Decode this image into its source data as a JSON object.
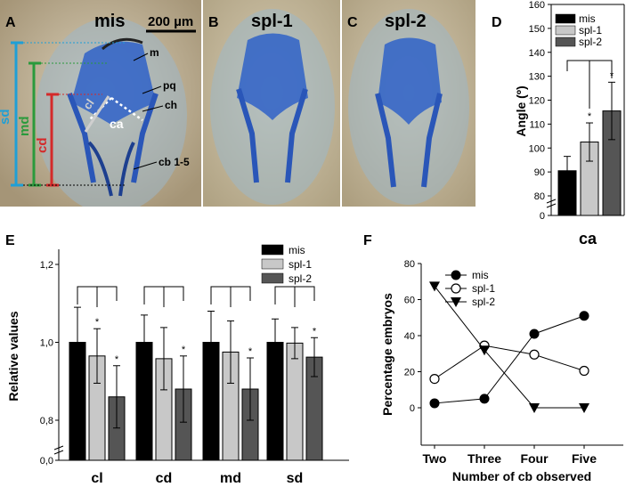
{
  "colors": {
    "mis": "#000000",
    "spl1": "#c8c8c8",
    "spl2": "#555555",
    "cl": "#d42a2a",
    "cd": "#d42a2a",
    "md": "#2a9a3c",
    "sd": "#1f9fd6",
    "cartilage": "#2f62c8"
  },
  "photos": {
    "A": {
      "letter": "A",
      "title": "mis",
      "scale": "200 µm",
      "labels": [
        "m",
        "pq",
        "ch",
        "ca",
        "cb 1-5"
      ],
      "measures": [
        "cl",
        "cd",
        "md",
        "sd"
      ]
    },
    "B": {
      "letter": "B",
      "title": "spl-1"
    },
    "C": {
      "letter": "C",
      "title": "spl-2"
    }
  },
  "chart_data": [
    {
      "panel": "D",
      "type": "bar",
      "ylabel": "Angle (º)",
      "categories": [
        "ca"
      ],
      "yticks": [
        0,
        80,
        90,
        100,
        110,
        120,
        130,
        140,
        150,
        160
      ],
      "series": [
        {
          "name": "mis",
          "values": [
            90.5
          ],
          "err": [
            6
          ]
        },
        {
          "name": "spl-1",
          "values": [
            102.5
          ],
          "err": [
            8
          ]
        },
        {
          "name": "spl-2",
          "values": [
            115.5
          ],
          "err": [
            12
          ]
        }
      ],
      "sig": [
        "",
        "*",
        "*"
      ]
    },
    {
      "panel": "E",
      "type": "bar",
      "ylabel": "Relative values",
      "categories": [
        "cl",
        "cd",
        "md",
        "sd"
      ],
      "yticks": [
        "0,0",
        "0,8",
        "1,0",
        "1,2"
      ],
      "series": [
        {
          "name": "mis",
          "values": [
            1.0,
            1.0,
            1.0,
            1.0
          ],
          "err": [
            0.09,
            0.07,
            0.08,
            0.06
          ]
        },
        {
          "name": "spl-1",
          "values": [
            0.965,
            0.958,
            0.975,
            0.998
          ],
          "err": [
            0.07,
            0.08,
            0.08,
            0.04
          ]
        },
        {
          "name": "spl-2",
          "values": [
            0.86,
            0.88,
            0.88,
            0.962
          ],
          "err": [
            0.08,
            0.085,
            0.08,
            0.05
          ]
        }
      ],
      "sig": [
        [
          "",
          "*",
          "*"
        ],
        [
          "",
          "",
          "*"
        ],
        [
          "",
          "",
          "*"
        ],
        [
          "",
          "",
          "*"
        ]
      ]
    },
    {
      "panel": "F",
      "type": "line",
      "xlabel": "Number of cb observed",
      "ylabel": "Percentage embryos",
      "categories": [
        "Two",
        "Three",
        "Four",
        "Five"
      ],
      "yticks": [
        0,
        20,
        40,
        60,
        80
      ],
      "series": [
        {
          "name": "mis",
          "marker": "filled-circle",
          "values": [
            2.5,
            5,
            41,
            51
          ]
        },
        {
          "name": "spl-1",
          "marker": "open-circle",
          "values": [
            16,
            34.5,
            29.5,
            20.5
          ]
        },
        {
          "name": "spl-2",
          "marker": "triangle-down",
          "values": [
            67.5,
            32,
            0,
            0
          ]
        }
      ]
    }
  ]
}
